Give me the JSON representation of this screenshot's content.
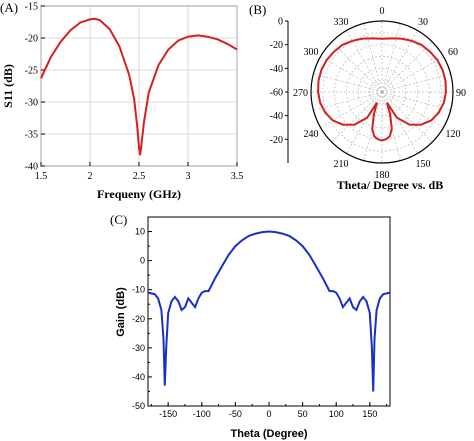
{
  "chart_data": [
    {
      "panel": "(A)",
      "type": "line",
      "xlabel": "Frequeny (GHz)",
      "ylabel": "S11 (dB)",
      "xlim": [
        1.5,
        3.5
      ],
      "ylim": [
        -40,
        -15
      ],
      "xticks": [
        "1.5",
        "2",
        "2.5",
        "3",
        "3.5"
      ],
      "yticks": [
        "-15",
        "-20",
        "-25",
        "-30",
        "-35",
        "-40"
      ],
      "grid": true,
      "color": "#d42020",
      "x": [
        1.5,
        1.6,
        1.7,
        1.8,
        1.9,
        2.0,
        2.05,
        2.1,
        2.2,
        2.3,
        2.4,
        2.45,
        2.48,
        2.5,
        2.51,
        2.52,
        2.55,
        2.6,
        2.7,
        2.8,
        2.9,
        3.0,
        3.1,
        3.2,
        3.3,
        3.4,
        3.5
      ],
      "y": [
        -26.3,
        -23.0,
        -20.6,
        -18.8,
        -17.6,
        -17.1,
        -17.0,
        -17.2,
        -18.6,
        -21.3,
        -25.8,
        -29.5,
        -33.5,
        -37.0,
        -38.3,
        -37.3,
        -33.2,
        -28.5,
        -24.2,
        -21.8,
        -20.4,
        -19.8,
        -19.6,
        -19.8,
        -20.2,
        -20.9,
        -21.8
      ]
    },
    {
      "panel": "(B)",
      "type": "polar",
      "xlabel": "Theta/ Degree vs. dB",
      "angle_labels": [
        "0",
        "30",
        "60",
        "90",
        "120",
        "150",
        "180",
        "210",
        "240",
        "270",
        "300",
        "330"
      ],
      "radial_ticks": [
        "0",
        "-20",
        "-40",
        "-60",
        "-40",
        "-20"
      ],
      "rlim": [
        -60,
        0
      ],
      "grid": true,
      "color": "#d42020",
      "theta": [
        0,
        10,
        20,
        30,
        40,
        50,
        60,
        70,
        80,
        90,
        100,
        110,
        120,
        130,
        140,
        150,
        155,
        160,
        165,
        170,
        175,
        180
      ],
      "r": [
        -15,
        -14,
        -12,
        -10,
        -8,
        -7,
        -6,
        -5.5,
        -5.5,
        -6,
        -7,
        -9,
        -12,
        -17,
        -24,
        -35,
        -50,
        -40,
        -28,
        -22,
        -20,
        -19
      ]
    },
    {
      "panel": "(C)",
      "type": "line",
      "xlabel": "Theta (Degree)",
      "ylabel": "Gain (dB)",
      "xlim": [
        -180,
        180
      ],
      "ylim": [
        -50,
        15
      ],
      "xticks": [
        "-150",
        "-100",
        "-50",
        "0",
        "50",
        "100",
        "150"
      ],
      "yticks": [
        "10",
        "0",
        "-10",
        "-20",
        "-30",
        "-40",
        "-50"
      ],
      "grid": false,
      "color": "#1a2fc8",
      "x": [
        -180,
        -170,
        -165,
        -160,
        -157,
        -155,
        -153,
        -150,
        -145,
        -140,
        -135,
        -130,
        -125,
        -120,
        -115,
        -110,
        -105,
        -100,
        -95,
        -90,
        -80,
        -70,
        -60,
        -50,
        -40,
        -30,
        -20,
        -10,
        0,
        10,
        20,
        30,
        40,
        50,
        60,
        70,
        80,
        90,
        95,
        100,
        105,
        110,
        115,
        120,
        125,
        130,
        135,
        140,
        145,
        150,
        153,
        155,
        157,
        160,
        165,
        170,
        180
      ],
      "y": [
        -11,
        -11.5,
        -13,
        -17,
        -27,
        -43,
        -30,
        -18,
        -14,
        -12.5,
        -14,
        -17,
        -16,
        -13,
        -14.5,
        -16,
        -13,
        -11,
        -10.5,
        -10.5,
        -6,
        -2,
        2,
        5,
        7,
        8.5,
        9.3,
        9.8,
        10,
        9.8,
        9.3,
        8.5,
        7,
        5,
        2,
        -2,
        -6,
        -10.5,
        -10.5,
        -11,
        -13,
        -16,
        -14.5,
        -13,
        -16,
        -17,
        -14,
        -12.5,
        -14,
        -18,
        -30,
        -45,
        -27,
        -17,
        -13,
        -11.5,
        -11
      ]
    }
  ]
}
